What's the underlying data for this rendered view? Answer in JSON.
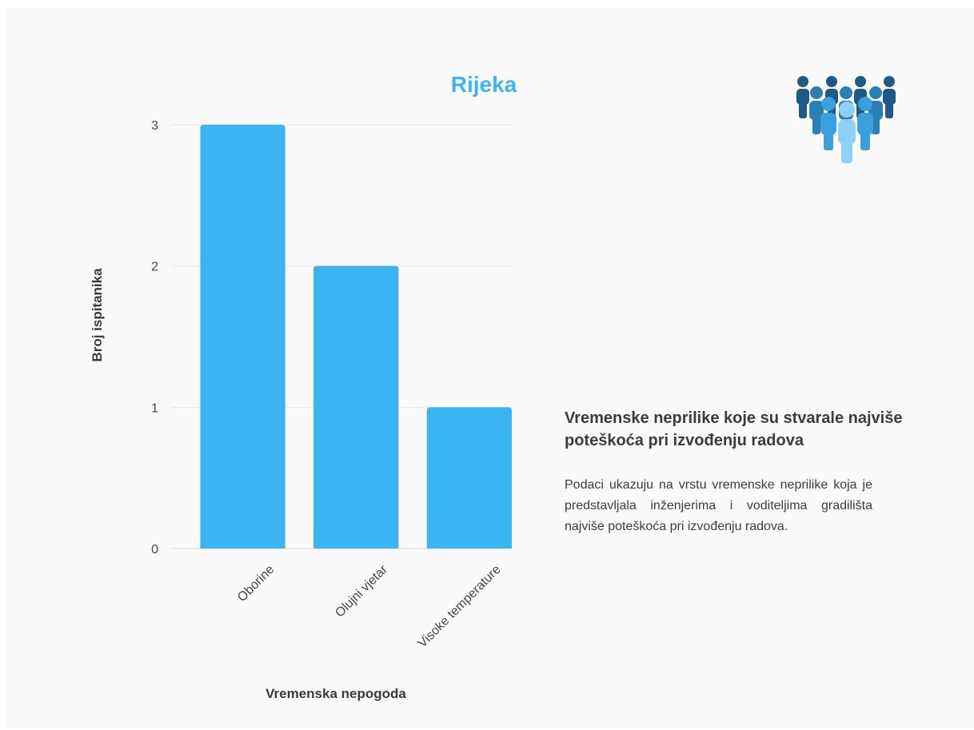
{
  "chart_data": {
    "type": "bar",
    "title": "Rijeka",
    "categories": [
      "Oborine",
      "Olujni vjetar",
      "Visoke temperature"
    ],
    "values": [
      3,
      2,
      1
    ],
    "xlabel": "Vremenska nepogoda",
    "ylabel": "Broj ispitanika",
    "ylim": [
      0,
      3
    ],
    "yticks": [
      "0",
      "1",
      "2",
      "3"
    ],
    "grid": true,
    "bar_color": "#3ab4f2"
  },
  "panel": {
    "title": "Vremenske neprilike koje su stvarale najviše poteškoća pri izvođenju radova",
    "text": "Podaci ukazuju na vrstu vremenske neprilike koja je predstavljala inženjerima i voditeljima gradilišta najviše poteškoća pri izvođenju radova."
  },
  "icon": {
    "name": "people-group-icon",
    "colors": [
      "#1e5a85",
      "#2a7fb5",
      "#3a9fdc",
      "#8fd0f8"
    ]
  }
}
